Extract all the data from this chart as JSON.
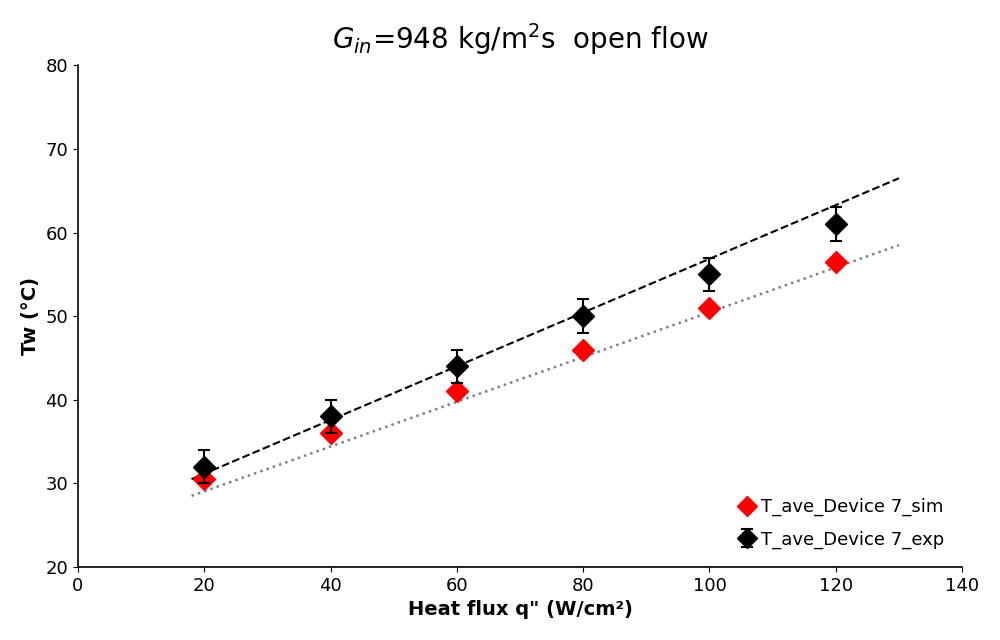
{
  "title": "$G_{in}$=948 kg/m$^2$s  open flow",
  "xlabel": "Heat flux q\" (W/cm²)",
  "ylabel": "Tw (°C)",
  "xlim": [
    0,
    140
  ],
  "ylim": [
    20,
    80
  ],
  "xticks": [
    0,
    20,
    40,
    60,
    80,
    100,
    120,
    140
  ],
  "yticks": [
    20,
    30,
    40,
    50,
    60,
    70,
    80
  ],
  "exp_x": [
    20,
    40,
    60,
    80,
    100,
    120
  ],
  "exp_y": [
    32.0,
    38.0,
    44.0,
    50.0,
    55.0,
    61.0
  ],
  "exp_yerr": [
    2.0,
    2.0,
    2.0,
    2.0,
    2.0,
    2.0
  ],
  "sim_x": [
    20,
    40,
    60,
    80,
    100,
    120
  ],
  "sim_y": [
    30.5,
    36.0,
    41.0,
    46.0,
    51.0,
    56.5
  ],
  "dashed_line_x": [
    18,
    130
  ],
  "dashed_line_y": [
    30.5,
    66.5
  ],
  "dotted_line_x": [
    18,
    130
  ],
  "dotted_line_y": [
    28.5,
    58.5
  ],
  "exp_color": "#000000",
  "sim_color": "#ff0000",
  "marker_size": 11,
  "exp_label": "T_ave_Device 7_exp",
  "sim_label": "T_ave_Device 7_sim",
  "background_color": "#ffffff",
  "title_fontsize": 20,
  "axis_label_fontsize": 14,
  "tick_fontsize": 13,
  "legend_fontsize": 13
}
